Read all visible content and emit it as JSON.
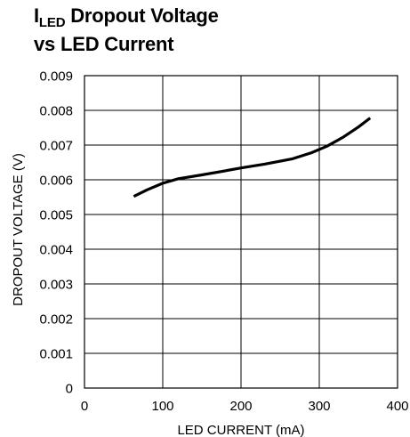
{
  "title": {
    "symbol": "I",
    "subscript": "LED",
    "line1_rest": " Dropout Voltage",
    "line2": "vs LED Current"
  },
  "chart_data": {
    "type": "line",
    "xlabel": "LED CURRENT (mA)",
    "ylabel": "DROPOUT VOLTAGE (V)",
    "xlim": [
      0,
      400
    ],
    "ylim": [
      0,
      0.009
    ],
    "xticks": [
      0,
      100,
      200,
      300,
      400
    ],
    "xtick_labels": [
      "0",
      "100",
      "200",
      "300",
      "400"
    ],
    "yticks": [
      0,
      0.001,
      0.002,
      0.003,
      0.004,
      0.005,
      0.006,
      0.007,
      0.008,
      0.009
    ],
    "ytick_labels": [
      "0",
      "0.001",
      "0.002",
      "0.003",
      "0.004",
      "0.005",
      "0.006",
      "0.007",
      "0.008",
      "0.009"
    ],
    "grid": true,
    "series": [
      {
        "color": "#000000",
        "x": [
          63,
          80,
          100,
          120,
          150,
          180,
          200,
          230,
          265,
          290,
          310,
          330,
          350,
          365
        ],
        "y": [
          0.00552,
          0.00571,
          0.0059,
          0.00603,
          0.00614,
          0.00626,
          0.00634,
          0.00645,
          0.0066,
          0.00678,
          0.00697,
          0.00722,
          0.00752,
          0.00778
        ]
      }
    ]
  }
}
